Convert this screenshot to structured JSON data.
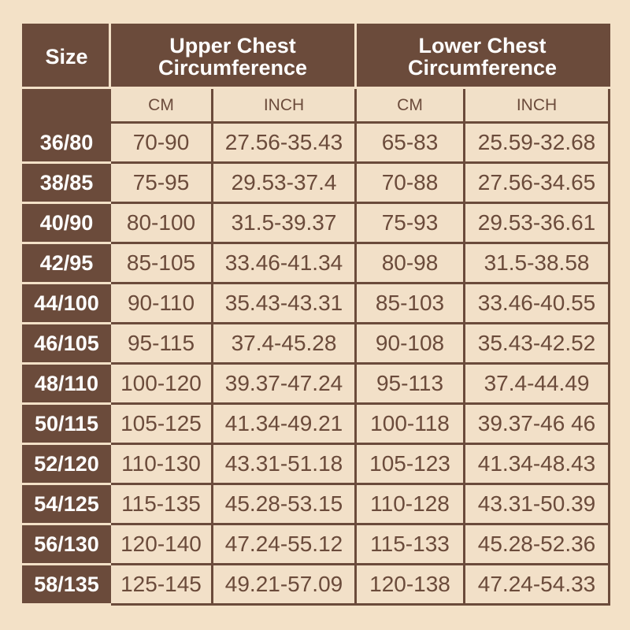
{
  "header": {
    "size": "Size",
    "upper": "Upper Chest Circumference",
    "lower": "Lower Chest Circumference",
    "units": [
      "CM",
      "INCH",
      "CM",
      "INCH"
    ]
  },
  "rows": [
    [
      "36/80",
      "70-90",
      "27.56-35.43",
      "65-83",
      "25.59-32.68"
    ],
    [
      "38/85",
      "75-95",
      "29.53-37.4",
      "70-88",
      "27.56-34.65"
    ],
    [
      "40/90",
      "80-100",
      "31.5-39.37",
      "75-93",
      "29.53-36.61"
    ],
    [
      "42/95",
      "85-105",
      "33.46-41.34",
      "80-98",
      "31.5-38.58"
    ],
    [
      "44/100",
      "90-110",
      "35.43-43.31",
      "85-103",
      "33.46-40.55"
    ],
    [
      "46/105",
      "95-115",
      "37.4-45.28",
      "90-108",
      "35.43-42.52"
    ],
    [
      "48/110",
      "100-120",
      "39.37-47.24",
      "95-113",
      "37.4-44.49"
    ],
    [
      "50/115",
      "105-125",
      "41.34-49.21",
      "100-118",
      "39.37-46 46"
    ],
    [
      "52/120",
      "110-130",
      "43.31-51.18",
      "105-123",
      "41.34-48.43"
    ],
    [
      "54/125",
      "115-135",
      "45.28-53.15",
      "110-128",
      "43.31-50.39"
    ],
    [
      "56/130",
      "120-140",
      "47.24-55.12",
      "115-133",
      "45.28-52.36"
    ],
    [
      "58/135",
      "125-145",
      "49.21-57.09",
      "120-138",
      "47.24-54.33"
    ]
  ],
  "colors": {
    "brown": "#6b4b3b",
    "background": "#f3e1c7"
  }
}
